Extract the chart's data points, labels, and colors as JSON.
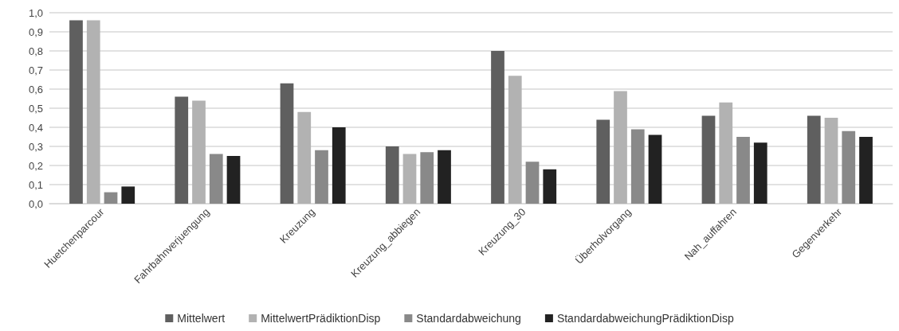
{
  "chart_data": {
    "type": "bar",
    "categories": [
      "Huetchenparcour",
      "Fahrbahnverjuengung",
      "Kreuzung",
      "Kreuzung_abbiegen",
      "Kreuzung_30",
      "Überholvorgang",
      "Nah_auffahren",
      "Gegenverkehr"
    ],
    "series": [
      {
        "name": "Mittelwert",
        "color": "#5f5f5f",
        "values": [
          0.96,
          0.56,
          0.63,
          0.3,
          0.8,
          0.44,
          0.46,
          0.46
        ]
      },
      {
        "name": "MittelwertPrädiktionDisp",
        "color": "#b2b2b2",
        "values": [
          0.96,
          0.54,
          0.48,
          0.26,
          0.67,
          0.59,
          0.53,
          0.45
        ]
      },
      {
        "name": "Standardabweichung",
        "color": "#898989",
        "values": [
          0.06,
          0.26,
          0.28,
          0.27,
          0.22,
          0.39,
          0.35,
          0.38
        ]
      },
      {
        "name": "StandardabweichungPrädiktionDisp",
        "color": "#222222",
        "values": [
          0.09,
          0.25,
          0.4,
          0.28,
          0.18,
          0.36,
          0.32,
          0.35
        ]
      }
    ],
    "ylim": [
      0,
      1
    ],
    "yticks": [
      {
        "value": 0,
        "label": "0,0"
      },
      {
        "value": 0.1,
        "label": "0,1"
      },
      {
        "value": 0.2,
        "label": "0,2"
      },
      {
        "value": 0.3,
        "label": "0,3"
      },
      {
        "value": 0.4,
        "label": "0,4"
      },
      {
        "value": 0.5,
        "label": "0,5"
      },
      {
        "value": 0.6,
        "label": "0,6"
      },
      {
        "value": 0.7,
        "label": "0,7"
      },
      {
        "value": 0.8,
        "label": "0,8"
      },
      {
        "value": 0.9,
        "label": "0,9"
      },
      {
        "value": 1,
        "label": "1,0"
      }
    ],
    "grid": "y",
    "legend": "bottom"
  }
}
